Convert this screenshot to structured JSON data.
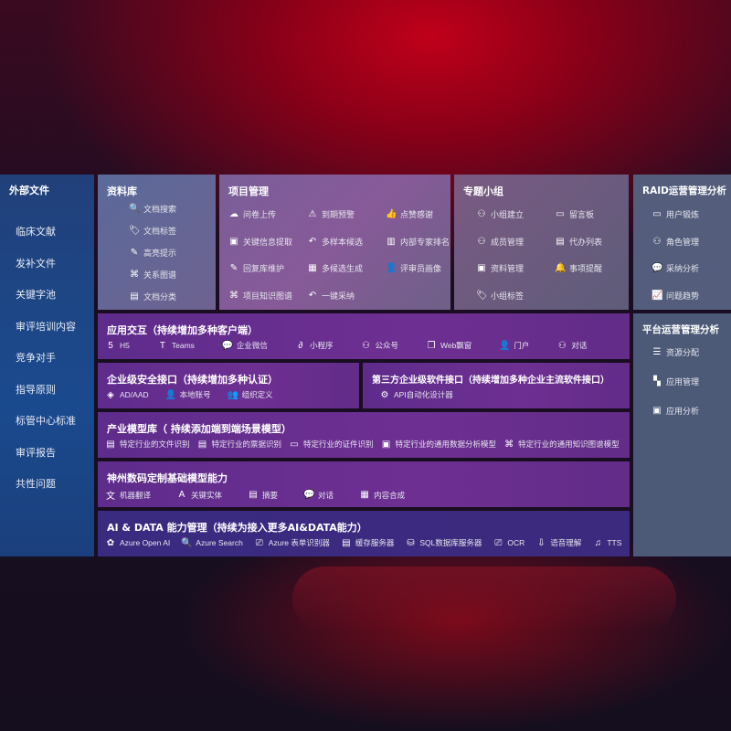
{
  "sidebar": {
    "title": "外部文件",
    "items": [
      "临床文献",
      "发补文件",
      "关键字池",
      "审评培训内容",
      "竞争对手",
      "指导原则",
      "标管中心标准",
      "审评报告",
      "共性问题"
    ]
  },
  "library": {
    "title": "资料库",
    "items": [
      {
        "label": "文档搜索",
        "icon": "document-search-icon",
        "g": "🔍"
      },
      {
        "label": "文档标签",
        "icon": "tag-icon",
        "g": "🏷"
      },
      {
        "label": "高亮提示",
        "icon": "pen-icon",
        "g": "✎"
      },
      {
        "label": "关系图谱",
        "icon": "graph-icon",
        "g": "⌘"
      },
      {
        "label": "文档分类",
        "icon": "document-category-icon",
        "g": "▤"
      }
    ]
  },
  "project": {
    "title": "项目管理",
    "items": [
      {
        "label": "问卷上传",
        "icon": "cloud-upload-icon",
        "g": "☁"
      },
      {
        "label": "到期预警",
        "icon": "alarm-icon",
        "g": "⚠"
      },
      {
        "label": "点赞感谢",
        "icon": "thumbs-up-icon",
        "g": "👍"
      },
      {
        "label": "关键信息提取",
        "icon": "window-icon",
        "g": "▣"
      },
      {
        "label": "多样本候选",
        "icon": "reply-icon",
        "g": "↶"
      },
      {
        "label": "内部专家排名",
        "icon": "podium-icon",
        "g": "▥"
      },
      {
        "label": "回复库维护",
        "icon": "edit-icon",
        "g": "✎"
      },
      {
        "label": "多候选生成",
        "icon": "puzzle-icon",
        "g": "▦"
      },
      {
        "label": "评审员画像",
        "icon": "user-icon",
        "g": "👤"
      },
      {
        "label": "项目知识图谱",
        "icon": "graph-icon",
        "g": "⌘"
      },
      {
        "label": "一键采纳",
        "icon": "reply-icon",
        "g": "↶"
      }
    ]
  },
  "topic": {
    "title": "专题小组",
    "items": [
      {
        "label": "小组建立",
        "icon": "group-icon",
        "g": "⚇"
      },
      {
        "label": "留言板",
        "icon": "bbs-icon",
        "g": "▭"
      },
      {
        "label": "成员管理",
        "icon": "user-add-icon",
        "g": "⚇"
      },
      {
        "label": "代办列表",
        "icon": "clipboard-icon",
        "g": "▤"
      },
      {
        "label": "资料管理",
        "icon": "folder-icon",
        "g": "▣"
      },
      {
        "label": "事项提醒",
        "icon": "bell-icon",
        "g": "🔔"
      },
      {
        "label": "小组标签",
        "icon": "tag-icon",
        "g": "🏷"
      }
    ]
  },
  "raid": {
    "title": "RAID运营管理分析",
    "items": [
      {
        "label": "用户锻炼",
        "icon": "id-card-icon",
        "g": "▭"
      },
      {
        "label": "角色管理",
        "icon": "users-icon",
        "g": "⚇"
      },
      {
        "label": "采纳分析",
        "icon": "qa-icon",
        "g": "💬"
      },
      {
        "label": "问题趋势",
        "icon": "trend-chart-icon",
        "g": "📈"
      }
    ]
  },
  "platform": {
    "title": "平台运营管理分析",
    "items": [
      {
        "label": "资源分配",
        "icon": "checklist-icon",
        "g": "☰"
      },
      {
        "label": "应用管理",
        "icon": "apps-icon",
        "g": "▚"
      },
      {
        "label": "应用分析",
        "icon": "analysis-icon",
        "g": "▣"
      }
    ]
  },
  "app": {
    "title": "应用交互（持续增加多种客户端）",
    "items": [
      {
        "label": "H5",
        "icon": "html5-icon",
        "g": "5"
      },
      {
        "label": "Teams",
        "icon": "teams-icon",
        "g": "T"
      },
      {
        "label": "企业微信",
        "icon": "wecom-icon",
        "g": "💬"
      },
      {
        "label": "小程序",
        "icon": "mini-program-icon",
        "g": "∂"
      },
      {
        "label": "公众号",
        "icon": "users-icon",
        "g": "⚇"
      },
      {
        "label": "Web飘窗",
        "icon": "window-icon",
        "g": "❐"
      },
      {
        "label": "门户",
        "icon": "portal-icon",
        "g": "👤"
      },
      {
        "label": "对话",
        "icon": "chat-users-icon",
        "g": "⚇"
      }
    ]
  },
  "security": {
    "title": "企业级安全接口（持续增加多种认证）",
    "items": [
      {
        "label": "AD/AAD",
        "icon": "diamond-icon",
        "g": "◈"
      },
      {
        "label": "本地账号",
        "icon": "user-lock-icon",
        "g": "👤"
      },
      {
        "label": "组织定义",
        "icon": "organization-icon",
        "g": "👥"
      }
    ]
  },
  "third": {
    "title": "第三方企业级软件接口（持续增加多种企业主流软件接口）",
    "items": [
      {
        "label": "API自动化设计器",
        "icon": "gear-icon",
        "g": "⚙"
      }
    ]
  },
  "industry": {
    "title": "产业模型库（ 持续添加端到端场景模型）",
    "items": [
      {
        "label": "特定行业的文件识别",
        "icon": "file-icon",
        "g": "▤"
      },
      {
        "label": "特定行业的票据识别",
        "icon": "receipt-icon",
        "g": "▤"
      },
      {
        "label": "特定行业的证件识别",
        "icon": "id-card-icon",
        "g": "▭"
      },
      {
        "label": "特定行业的通用数据分析模型",
        "icon": "image-icon",
        "g": "▣"
      },
      {
        "label": "特定行业的通用知识图谱模型",
        "icon": "graph-icon",
        "g": "⌘"
      }
    ]
  },
  "dc": {
    "title": "神州数码定制基础模型能力",
    "items": [
      {
        "label": "机器翻译",
        "icon": "translate-icon",
        "g": "文"
      },
      {
        "label": "关键实体",
        "icon": "entity-icon",
        "g": "A"
      },
      {
        "label": "摘要",
        "icon": "document-icon",
        "g": "▤"
      },
      {
        "label": "对话",
        "icon": "chat-icon",
        "g": "💬"
      },
      {
        "label": "内容合成",
        "icon": "puzzle-icon",
        "g": "▦"
      }
    ]
  },
  "ai": {
    "title": "AI & DATA 能力管理（持续为接入更多AI&DATA能力）",
    "items": [
      {
        "label": "Azure Open AI",
        "icon": "openai-icon",
        "g": "✿"
      },
      {
        "label": "Azure Search",
        "icon": "search-doc-icon",
        "g": "🔍"
      },
      {
        "label": "Azure 表单识别器",
        "icon": "form-scan-icon",
        "g": "⎚"
      },
      {
        "label": "缓存服务器",
        "icon": "server-icon",
        "g": "▤"
      },
      {
        "label": "SQL数据库服务器",
        "icon": "database-icon",
        "g": "⛁"
      },
      {
        "label": "OCR",
        "icon": "ocr-icon",
        "g": "⎚"
      },
      {
        "label": "语音理解",
        "icon": "speech-icon",
        "g": "⇩"
      },
      {
        "label": "TTS",
        "icon": "tts-icon",
        "g": "♫"
      }
    ]
  }
}
